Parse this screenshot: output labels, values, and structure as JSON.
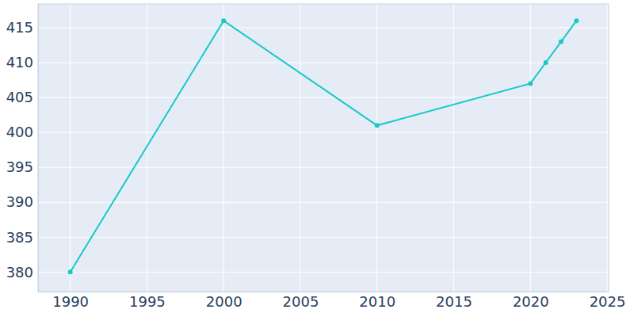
{
  "chart_data": {
    "type": "line",
    "x": [
      1990,
      2000,
      2010,
      2020,
      2021,
      2022,
      2023
    ],
    "values": [
      380,
      416,
      401,
      407,
      410,
      413,
      416
    ],
    "color": "#17c9c9",
    "marker": "circle",
    "xlim": [
      1987.9,
      2025.1
    ],
    "xticks": [
      1990,
      1995,
      2000,
      2005,
      2010,
      2015,
      2020,
      2025
    ],
    "ylim": [
      377.2,
      418.4
    ],
    "yticks": [
      380,
      385,
      390,
      395,
      400,
      405,
      410,
      415
    ],
    "grid": true
  }
}
